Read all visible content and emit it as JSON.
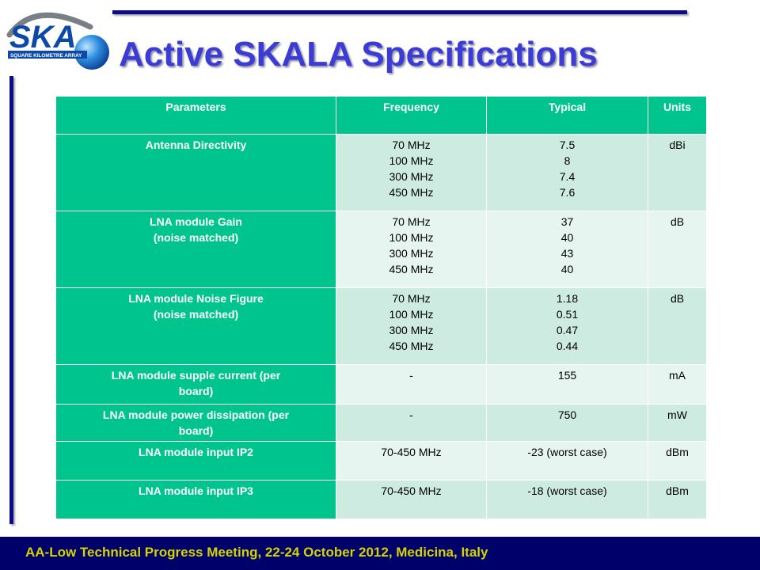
{
  "logo": {
    "text": "SKA",
    "subtitle": "SQUARE KILOMETRE ARRAY"
  },
  "title": "Active SKALA Specifications",
  "table": {
    "headers": [
      "Parameters",
      "Frequency",
      "Typical",
      "Units"
    ],
    "rows": [
      {
        "param": [
          "Antenna Directivity"
        ],
        "frequency": [
          "70 MHz",
          "100 MHz",
          "300 MHz",
          "450 MHz"
        ],
        "typical": [
          "7.5",
          "8",
          "7.4",
          "7.6"
        ],
        "units": "dBi"
      },
      {
        "param": [
          "LNA module Gain",
          "(noise matched)"
        ],
        "frequency": [
          "70 MHz",
          "100 MHz",
          "300 MHz",
          "450 MHz"
        ],
        "typical": [
          "37",
          "40",
          "43",
          "40"
        ],
        "units": "dB"
      },
      {
        "param": [
          "LNA module Noise Figure",
          "(noise matched)"
        ],
        "frequency": [
          "70 MHz",
          "100 MHz",
          "300 MHz",
          "450 MHz"
        ],
        "typical": [
          "1.18",
          "0.51",
          "0.47",
          "0.44"
        ],
        "units": "dB"
      },
      {
        "param": [
          "LNA module supple current (per",
          "board)"
        ],
        "frequency": [
          "-"
        ],
        "typical": [
          "155"
        ],
        "units": "mA"
      },
      {
        "param": [
          "LNA module power dissipation (per",
          "board)"
        ],
        "frequency": [
          "-"
        ],
        "typical": [
          "750"
        ],
        "units": "mW"
      },
      {
        "param": [
          "LNA module input IP2"
        ],
        "frequency": [
          "70-450 MHz"
        ],
        "typical": [
          "-23 (worst case)"
        ],
        "units": "dBm"
      },
      {
        "param": [
          "LNA module input IP3"
        ],
        "frequency": [
          "70-450 MHz"
        ],
        "typical": [
          "-18 (worst case)"
        ],
        "units": "dBm"
      }
    ]
  },
  "footer": "AA-Low Technical Progress Meeting, 22-24 October 2012, Medicina, Italy"
}
